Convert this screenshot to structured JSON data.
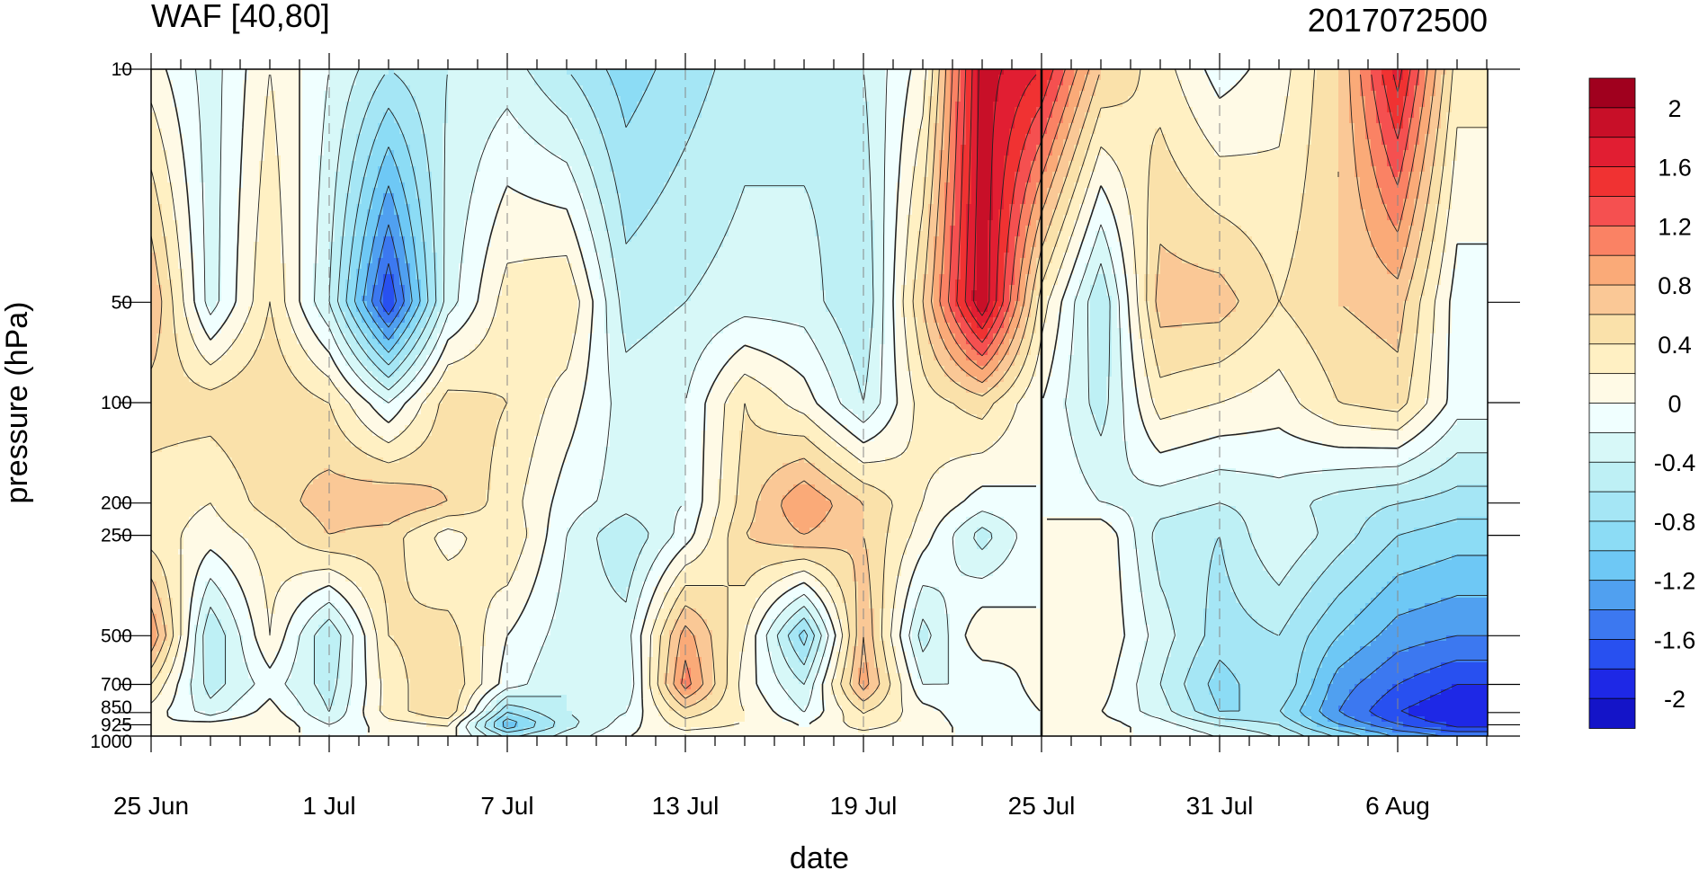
{
  "chart_data": {
    "type": "heatmap",
    "title": "WAF [40,80]",
    "subtitle": "2017072500",
    "xlabel": "date",
    "ylabel": "pressure (hPa)",
    "x_ticks": [
      "25 Jun",
      "1 Jul",
      "7 Jul",
      "13 Jul",
      "19 Jul",
      "25 Jul",
      "31 Jul",
      "6 Aug"
    ],
    "x_range": [
      "25 Jun",
      "9 Aug"
    ],
    "y_ticks": [
      "10",
      "50",
      "100",
      "200",
      "250",
      "500",
      "700",
      "850",
      "925",
      "1000"
    ],
    "y_scale": "log",
    "y_reversed": true,
    "y_range": [
      1000,
      10
    ],
    "marked_date": "25 Jul",
    "colorbar": {
      "levels": [
        -2.2,
        -2,
        -1.8,
        -1.6,
        -1.4,
        -1.2,
        -1,
        -0.8,
        -0.6,
        -0.4,
        -0.2,
        0,
        0.2,
        0.4,
        0.6,
        0.8,
        1,
        1.2,
        1.4,
        1.6,
        1.8,
        2,
        2.2
      ],
      "tick_labels": [
        "2",
        "1.6",
        "1.2",
        "0.8",
        "0.4",
        "0",
        "-0.4",
        "-0.8",
        "-1.2",
        "-1.6",
        "-2"
      ],
      "colors": [
        "#1414c8",
        "#1e28e6",
        "#2850f0",
        "#3c78f0",
        "#50a0f0",
        "#6ec8f5",
        "#8cdcf5",
        "#a5e6f5",
        "#bef0f5",
        "#d7f8f8",
        "#f0ffff",
        "#fffae6",
        "#fff0c3",
        "#fae1aa",
        "#fac896",
        "#faaa78",
        "#fa8264",
        "#f55050",
        "#f03232",
        "#e11e32",
        "#c80f28",
        "#a0001e"
      ]
    },
    "grid_points": {
      "dates": [
        "25 Jun",
        "27 Jun",
        "29 Jun",
        "1 Jul",
        "3 Jul",
        "5 Jul",
        "7 Jul",
        "9 Jul",
        "11 Jul",
        "13 Jul",
        "15 Jul",
        "17 Jul",
        "19 Jul",
        "21 Jul",
        "23 Jul",
        "25 Jul",
        "27 Jul",
        "29 Jul",
        "31 Jul",
        "2 Aug",
        "4 Aug",
        "6 Aug",
        "8 Aug"
      ],
      "levels": [
        10,
        50,
        100,
        200,
        250,
        500,
        700,
        850,
        925,
        1000
      ],
      "values": [
        [
          0.1,
          -0.3,
          0.2,
          -0.2,
          -0.6,
          -0.4,
          -0.3,
          -0.6,
          -0.9,
          -0.7,
          -0.5,
          -0.5,
          -0.4,
          0.1,
          1.9,
          1.6,
          0.6,
          0.3,
          -0.1,
          0.1,
          0.6,
          1.7,
          0.3
        ],
        [
          0.8,
          -0.3,
          0.4,
          -0.4,
          -1.8,
          -0.3,
          0.3,
          0.4,
          -0.5,
          -0.4,
          -0.3,
          -0.3,
          -0.6,
          0.6,
          2.0,
          0.3,
          -0.6,
          0.7,
          0.7,
          0.4,
          0.6,
          0.7,
          -0.1
        ],
        [
          0.5,
          0.5,
          0.6,
          0.4,
          -0.2,
          0.5,
          0.4,
          0.1,
          -0.3,
          -0.2,
          0.4,
          0.1,
          -0.4,
          0.3,
          0.5,
          0.0,
          -0.5,
          0.3,
          0.2,
          0.1,
          0.4,
          0.5,
          -0.1
        ],
        [
          0.3,
          0.2,
          0.5,
          0.7,
          0.8,
          0.6,
          0.3,
          -0.1,
          -0.3,
          -0.2,
          0.5,
          1.0,
          0.6,
          0.2,
          -0.1,
          0.0,
          -0.2,
          -0.3,
          -0.4,
          -0.3,
          -0.5,
          -0.6,
          -0.7
        ],
        [
          0.3,
          0.1,
          0.3,
          0.6,
          0.5,
          0.1,
          0.4,
          -0.2,
          -0.6,
          -0.1,
          0.6,
          0.8,
          0.6,
          0.1,
          -0.5,
          0.0,
          0.2,
          -0.5,
          -0.6,
          -0.2,
          -0.5,
          -0.8,
          -0.9
        ],
        [
          1.0,
          -0.6,
          0.2,
          -0.6,
          0.4,
          0.5,
          0.0,
          -0.3,
          -0.3,
          0.9,
          0.2,
          -0.9,
          0.8,
          -0.5,
          0.2,
          0.0,
          0.2,
          -0.3,
          -0.7,
          -0.6,
          -1.0,
          -1.3,
          -1.4
        ],
        [
          0.4,
          -0.5,
          -0.1,
          -0.5,
          0.3,
          0.6,
          -0.1,
          -0.4,
          -0.4,
          1.1,
          0.1,
          -0.4,
          0.9,
          -0.2,
          -0.2,
          0.1,
          0.1,
          -0.4,
          -0.9,
          -0.6,
          -1.3,
          -1.6,
          -1.8
        ],
        [
          0.1,
          -0.3,
          0.1,
          -0.4,
          0.3,
          0.6,
          -0.8,
          -0.4,
          -0.2,
          0.5,
          0.2,
          -0.2,
          0.4,
          0.1,
          -0.2,
          0.0,
          0.0,
          -0.3,
          -0.8,
          -0.8,
          -1.4,
          -1.8,
          -2.0
        ],
        [
          0.0,
          0.1,
          0.2,
          -0.2,
          0.1,
          0.2,
          -1.2,
          -0.5,
          -0.1,
          0.3,
          0.2,
          0.0,
          0.3,
          0.1,
          -0.1,
          0.0,
          0.1,
          -0.1,
          -0.4,
          -0.6,
          -1.2,
          -1.6,
          -1.9
        ],
        [
          0.0,
          0.0,
          0.0,
          0.0,
          0.0,
          0.1,
          -0.6,
          -0.3,
          0.0,
          0.1,
          0.0,
          0.0,
          0.1,
          0.0,
          0.0,
          0.0,
          0.0,
          0.0,
          -0.2,
          -0.4,
          -0.8,
          -1.2,
          -1.4
        ]
      ]
    }
  }
}
